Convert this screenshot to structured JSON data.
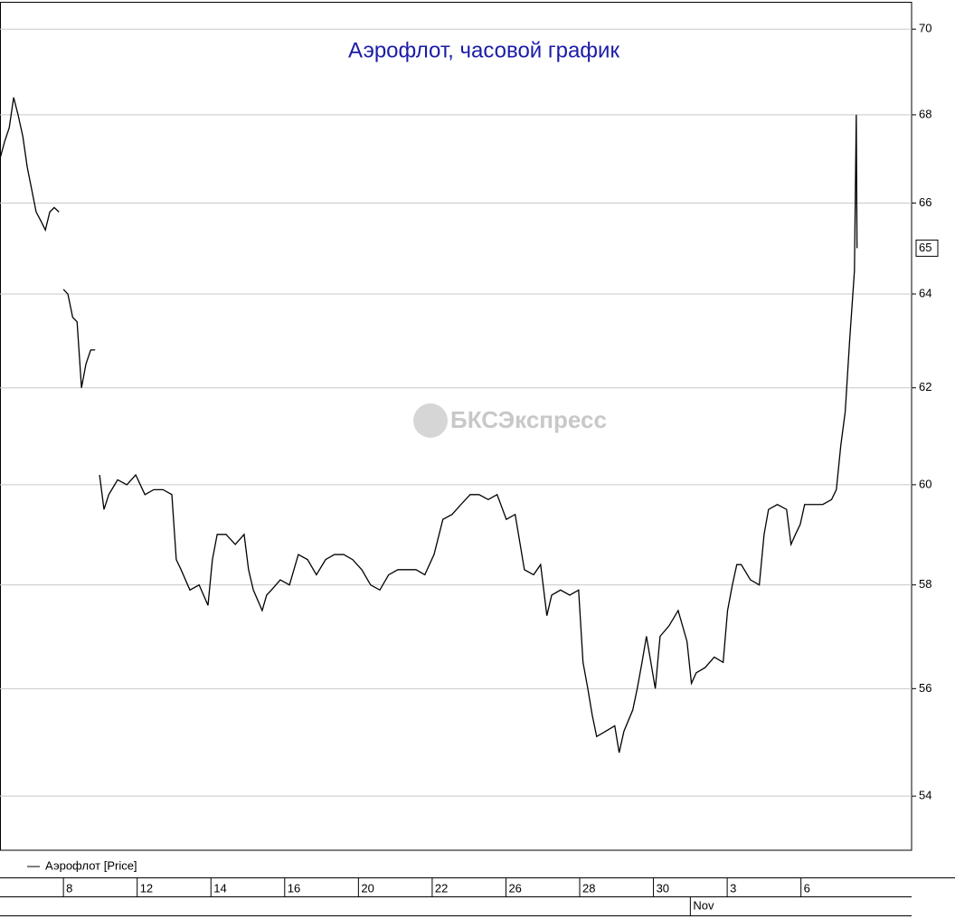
{
  "chart_data": {
    "type": "line",
    "log_scale": true,
    "grid": true,
    "title": "Аэрофлот, часовой график",
    "watermark": "БКСЭкспресс",
    "last_price_label": 65,
    "xlim": [
      -1.72,
      23
    ],
    "ylim": [
      53.02,
      70.65
    ],
    "yticks": [
      54,
      56,
      58,
      60,
      62,
      64,
      66,
      68,
      70
    ],
    "xticks": [
      {
        "value": 0,
        "label": "8"
      },
      {
        "value": 2,
        "label": "12"
      },
      {
        "value": 4,
        "label": "14"
      },
      {
        "value": 6,
        "label": "16"
      },
      {
        "value": 8,
        "label": "20"
      },
      {
        "value": 10,
        "label": "22"
      },
      {
        "value": 12,
        "label": "26"
      },
      {
        "value": 14,
        "label": "28"
      },
      {
        "value": 16,
        "label": "30"
      },
      {
        "value": 18,
        "label": "3"
      },
      {
        "value": 20,
        "label": "6"
      }
    ],
    "month_ticks": [
      {
        "value": 17,
        "label": "Nov"
      }
    ],
    "x": [
      -1.72,
      -1.59,
      -1.47,
      -1.35,
      -1.23,
      -1.1,
      -0.98,
      -0.86,
      -0.74,
      -0.61,
      -0.49,
      -0.37,
      -0.25,
      -0.12,
      -0.05,
      0,
      0.12,
      0.25,
      0.37,
      0.49,
      0.61,
      0.74,
      0.86,
      0.91,
      0.98,
      1.1,
      1.23,
      1.47,
      1.72,
      1.96,
      2.21,
      2.45,
      2.7,
      2.94,
      3.06,
      3.19,
      3.43,
      3.68,
      3.92,
      4.04,
      4.17,
      4.41,
      4.66,
      4.9,
      5.02,
      5.15,
      5.39,
      5.51,
      5.64,
      5.88,
      6.13,
      6.37,
      6.62,
      6.86,
      7.11,
      7.35,
      7.6,
      7.84,
      8.09,
      8.33,
      8.58,
      8.82,
      9.07,
      9.31,
      9.56,
      9.8,
      10.05,
      10.29,
      10.54,
      10.78,
      11.03,
      11.27,
      11.52,
      11.76,
      12.01,
      12.25,
      12.5,
      12.75,
      12.94,
      13.11,
      13.24,
      13.48,
      13.73,
      13.97,
      14.09,
      14.22,
      14.34,
      14.46,
      14.71,
      14.95,
      15.07,
      15.2,
      15.44,
      15.56,
      15.69,
      15.81,
      15.93,
      16.05,
      16.18,
      16.42,
      16.67,
      16.91,
      17.03,
      17.16,
      17.4,
      17.65,
      17.89,
      18.01,
      18.14,
      18.26,
      18.38,
      18.63,
      18.87,
      19.0,
      19.12,
      19.36,
      19.61,
      19.73,
      19.85,
      19.98,
      20.1,
      20.34,
      20.59,
      20.83,
      20.96,
      21.08,
      21.2,
      21.32,
      21.45,
      21.5,
      21.52
    ],
    "series": [
      {
        "name": "Аэрофлот [Price]",
        "color": "#000000",
        "values": [
          67.0,
          67.4,
          67.7,
          68.4,
          68.0,
          67.5,
          66.8,
          66.3,
          65.8,
          65.6,
          65.4,
          65.8,
          65.9,
          65.8,
          null,
          64.1,
          64.0,
          63.5,
          63.4,
          62.0,
          62.5,
          62.8,
          62.8,
          null,
          60.2,
          59.5,
          59.8,
          60.1,
          60.0,
          60.2,
          59.8,
          59.9,
          59.9,
          59.8,
          58.5,
          58.3,
          57.9,
          58.0,
          57.6,
          58.5,
          59.0,
          59.0,
          58.8,
          59.0,
          58.3,
          57.9,
          57.5,
          57.8,
          57.9,
          58.1,
          58.0,
          58.6,
          58.5,
          58.2,
          58.5,
          58.6,
          58.6,
          58.5,
          58.3,
          58.0,
          57.9,
          58.2,
          58.3,
          58.3,
          58.3,
          58.2,
          58.6,
          59.3,
          59.4,
          59.6,
          59.8,
          59.8,
          59.7,
          59.8,
          59.3,
          59.4,
          58.3,
          58.2,
          58.4,
          57.4,
          57.8,
          57.9,
          57.8,
          57.9,
          56.5,
          56.0,
          55.5,
          55.1,
          55.2,
          55.3,
          54.8,
          55.2,
          55.6,
          56.0,
          56.5,
          57.0,
          56.5,
          56.0,
          57.0,
          57.2,
          57.5,
          56.9,
          56.1,
          56.3,
          56.4,
          56.6,
          56.5,
          57.5,
          58.0,
          58.4,
          58.4,
          58.1,
          58.0,
          59.0,
          59.5,
          59.6,
          59.5,
          58.8,
          59.0,
          59.2,
          59.6,
          59.6,
          59.6,
          59.7,
          59.9,
          60.8,
          61.5,
          63.0,
          64.5,
          68.0,
          65.0
        ]
      }
    ]
  }
}
